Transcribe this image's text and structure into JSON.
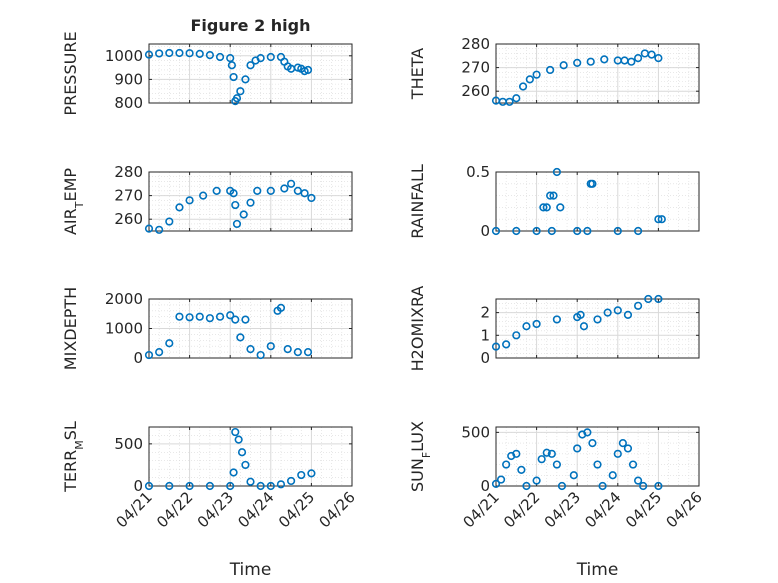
{
  "chart_data": [
    {
      "type": "scatter",
      "title": "Figure 2 high",
      "ylabel": "PRESSURE",
      "ylim": [
        800,
        1050
      ],
      "yticks": [
        800,
        900,
        1000
      ],
      "xlim": [
        "04/21",
        "04/26"
      ],
      "xticks": [
        "04/21",
        "04/22",
        "04/23",
        "04/24",
        "04/25",
        "04/26"
      ],
      "grid": true,
      "points": [
        [
          "04/21",
          1005
        ],
        [
          "04/21 06:00",
          1010
        ],
        [
          "04/21 12:00",
          1012
        ],
        [
          "04/21 18:00",
          1012
        ],
        [
          "04/22",
          1011
        ],
        [
          "04/22 06:00",
          1008
        ],
        [
          "04/22 12:00",
          1003
        ],
        [
          "04/22 18:00",
          995
        ],
        [
          "04/23",
          990
        ],
        [
          "04/23 01:00",
          960
        ],
        [
          "04/23 02:00",
          910
        ],
        [
          "04/23 03:00",
          808
        ],
        [
          "04/23 04:00",
          820
        ],
        [
          "04/23 06:00",
          850
        ],
        [
          "04/23 09:00",
          900
        ],
        [
          "04/23 12:00",
          960
        ],
        [
          "04/23 15:00",
          980
        ],
        [
          "04/23 18:00",
          990
        ],
        [
          "04/24",
          995
        ],
        [
          "04/24 06:00",
          995
        ],
        [
          "04/24 08:00",
          975
        ],
        [
          "04/24 10:00",
          955
        ],
        [
          "04/24 12:00",
          945
        ],
        [
          "04/24 16:00",
          950
        ],
        [
          "04/24 18:00",
          945
        ],
        [
          "04/24 20:00",
          935
        ],
        [
          "04/24 22:00",
          940
        ]
      ]
    },
    {
      "type": "scatter",
      "ylabel": "THETA",
      "ylim": [
        255,
        280
      ],
      "yticks": [
        260,
        270,
        280
      ],
      "xlim": [
        "04/21",
        "04/26"
      ],
      "xticks": [
        "04/21",
        "04/22",
        "04/23",
        "04/24",
        "04/25",
        "04/26"
      ],
      "grid": true,
      "points": [
        [
          "04/21",
          256
        ],
        [
          "04/21 04:00",
          255.5
        ],
        [
          "04/21 08:00",
          255.5
        ],
        [
          "04/21 12:00",
          257
        ],
        [
          "04/21 16:00",
          262
        ],
        [
          "04/21 20:00",
          265
        ],
        [
          "04/22",
          267
        ],
        [
          "04/22 08:00",
          269
        ],
        [
          "04/22 16:00",
          271
        ],
        [
          "04/23",
          272
        ],
        [
          "04/23 08:00",
          272.5
        ],
        [
          "04/23 16:00",
          273.5
        ],
        [
          "04/24",
          273
        ],
        [
          "04/24 04:00",
          273
        ],
        [
          "04/24 08:00",
          272.5
        ],
        [
          "04/24 12:00",
          274
        ],
        [
          "04/24 16:00",
          276
        ],
        [
          "04/24 20:00",
          275.5
        ],
        [
          "04/25",
          274
        ]
      ]
    },
    {
      "type": "scatter",
      "ylabel": "AIR_TEMP",
      "ylim": [
        255,
        280
      ],
      "yticks": [
        260,
        270,
        280
      ],
      "xlim": [
        "04/21",
        "04/26"
      ],
      "xticks": [
        "04/21",
        "04/22",
        "04/23",
        "04/24",
        "04/25",
        "04/26"
      ],
      "grid": true,
      "points": [
        [
          "04/21",
          256
        ],
        [
          "04/21 06:00",
          255.5
        ],
        [
          "04/21 12:00",
          259
        ],
        [
          "04/21 18:00",
          265
        ],
        [
          "04/22",
          268
        ],
        [
          "04/22 08:00",
          270
        ],
        [
          "04/22 16:00",
          272
        ],
        [
          "04/23",
          272
        ],
        [
          "04/23 02:00",
          271
        ],
        [
          "04/23 03:00",
          266
        ],
        [
          "04/23 04:00",
          258
        ],
        [
          "04/23 08:00",
          262
        ],
        [
          "04/23 12:00",
          267
        ],
        [
          "04/23 16:00",
          272
        ],
        [
          "04/24",
          272
        ],
        [
          "04/24 08:00",
          273
        ],
        [
          "04/24 12:00",
          275
        ],
        [
          "04/24 16:00",
          272
        ],
        [
          "04/24 20:00",
          271
        ],
        [
          "04/25",
          269
        ]
      ]
    },
    {
      "type": "scatter",
      "ylabel": "RAINFALL",
      "ylim": [
        0,
        0.5
      ],
      "yticks": [
        0,
        0.5
      ],
      "xlim": [
        "04/21",
        "04/26"
      ],
      "xticks": [
        "04/21",
        "04/22",
        "04/23",
        "04/24",
        "04/25",
        "04/26"
      ],
      "grid": true,
      "points": [
        [
          "04/21",
          0
        ],
        [
          "04/21 12:00",
          0
        ],
        [
          "04/22",
          0
        ],
        [
          "04/22 04:00",
          0.2
        ],
        [
          "04/22 06:00",
          0.2
        ],
        [
          "04/22 08:00",
          0.3
        ],
        [
          "04/22 09:00",
          0
        ],
        [
          "04/22 10:00",
          0.3
        ],
        [
          "04/22 12:00",
          0.5
        ],
        [
          "04/22 14:00",
          0.2
        ],
        [
          "04/23",
          0
        ],
        [
          "04/23 06:00",
          0
        ],
        [
          "04/23 08:00",
          0.4
        ],
        [
          "04/23 09:00",
          0.4
        ],
        [
          "04/24",
          0
        ],
        [
          "04/24 12:00",
          0
        ],
        [
          "04/25",
          0.1
        ],
        [
          "04/25 02:00",
          0.1
        ]
      ]
    },
    {
      "type": "scatter",
      "ylabel": "MIXDEPTH",
      "ylim": [
        0,
        2000
      ],
      "yticks": [
        0,
        1000,
        2000
      ],
      "xlim": [
        "04/21",
        "04/26"
      ],
      "xticks": [
        "04/21",
        "04/22",
        "04/23",
        "04/24",
        "04/25",
        "04/26"
      ],
      "grid": true,
      "points": [
        [
          "04/21",
          100
        ],
        [
          "04/21 06:00",
          200
        ],
        [
          "04/21 12:00",
          500
        ],
        [
          "04/21 18:00",
          1400
        ],
        [
          "04/22",
          1380
        ],
        [
          "04/22 06:00",
          1400
        ],
        [
          "04/22 12:00",
          1350
        ],
        [
          "04/22 18:00",
          1400
        ],
        [
          "04/23",
          1450
        ],
        [
          "04/23 03:00",
          1300
        ],
        [
          "04/23 06:00",
          700
        ],
        [
          "04/23 09:00",
          1300
        ],
        [
          "04/23 12:00",
          300
        ],
        [
          "04/23 18:00",
          100
        ],
        [
          "04/24",
          400
        ],
        [
          "04/24 04:00",
          1600
        ],
        [
          "04/24 06:00",
          1700
        ],
        [
          "04/24 10:00",
          300
        ],
        [
          "04/24 16:00",
          200
        ],
        [
          "04/24 22:00",
          200
        ]
      ]
    },
    {
      "type": "scatter",
      "ylabel": "H2OMIXRA",
      "ylim": [
        0,
        2.6
      ],
      "yticks": [
        0,
        1,
        2
      ],
      "xlim": [
        "04/21",
        "04/26"
      ],
      "xticks": [
        "04/21",
        "04/22",
        "04/23",
        "04/24",
        "04/25",
        "04/26"
      ],
      "grid": true,
      "points": [
        [
          "04/21",
          0.5
        ],
        [
          "04/21 06:00",
          0.6
        ],
        [
          "04/21 12:00",
          1.0
        ],
        [
          "04/21 18:00",
          1.4
        ],
        [
          "04/22",
          1.5
        ],
        [
          "04/22 12:00",
          1.7
        ],
        [
          "04/23",
          1.8
        ],
        [
          "04/23 02:00",
          1.9
        ],
        [
          "04/23 04:00",
          1.4
        ],
        [
          "04/23 12:00",
          1.7
        ],
        [
          "04/23 18:00",
          2.0
        ],
        [
          "04/24",
          2.1
        ],
        [
          "04/24 06:00",
          1.9
        ],
        [
          "04/24 12:00",
          2.3
        ],
        [
          "04/24 18:00",
          2.6
        ],
        [
          "04/25",
          2.6
        ]
      ]
    },
    {
      "type": "scatter",
      "ylabel": "TERR_MSL",
      "ylim": [
        0,
        700
      ],
      "yticks": [
        0,
        500
      ],
      "xlim": [
        "04/21",
        "04/26"
      ],
      "xticks": [
        "04/21",
        "04/22",
        "04/23",
        "04/24",
        "04/25",
        "04/26"
      ],
      "grid": true,
      "points": [
        [
          "04/21",
          0
        ],
        [
          "04/21 12:00",
          0
        ],
        [
          "04/22",
          0
        ],
        [
          "04/22 12:00",
          0
        ],
        [
          "04/23",
          0
        ],
        [
          "04/23 02:00",
          160
        ],
        [
          "04/23 03:00",
          640
        ],
        [
          "04/23 05:00",
          550
        ],
        [
          "04/23 07:00",
          400
        ],
        [
          "04/23 09:00",
          250
        ],
        [
          "04/23 12:00",
          50
        ],
        [
          "04/23 18:00",
          0
        ],
        [
          "04/24",
          0
        ],
        [
          "04/24 06:00",
          20
        ],
        [
          "04/24 12:00",
          60
        ],
        [
          "04/24 18:00",
          130
        ],
        [
          "04/25",
          150
        ]
      ]
    },
    {
      "type": "scatter",
      "ylabel": "SUN_FLUX",
      "ylim": [
        0,
        550
      ],
      "yticks": [
        0,
        500
      ],
      "xlim": [
        "04/21",
        "04/26"
      ],
      "xticks": [
        "04/21",
        "04/22",
        "04/23",
        "04/24",
        "04/25",
        "04/26"
      ],
      "grid": true,
      "points": [
        [
          "04/21",
          20
        ],
        [
          "04/21 03:00",
          60
        ],
        [
          "04/21 06:00",
          200
        ],
        [
          "04/21 09:00",
          280
        ],
        [
          "04/21 12:00",
          300
        ],
        [
          "04/21 15:00",
          150
        ],
        [
          "04/21 18:00",
          0
        ],
        [
          "04/22",
          50
        ],
        [
          "04/22 03:00",
          250
        ],
        [
          "04/22 06:00",
          310
        ],
        [
          "04/22 09:00",
          300
        ],
        [
          "04/22 12:00",
          200
        ],
        [
          "04/22 15:00",
          0
        ],
        [
          "04/22 22:00",
          100
        ],
        [
          "04/23",
          350
        ],
        [
          "04/23 03:00",
          480
        ],
        [
          "04/23 06:00",
          500
        ],
        [
          "04/23 09:00",
          400
        ],
        [
          "04/23 12:00",
          200
        ],
        [
          "04/23 15:00",
          0
        ],
        [
          "04/23 21:00",
          100
        ],
        [
          "04/24",
          300
        ],
        [
          "04/24 03:00",
          400
        ],
        [
          "04/24 06:00",
          350
        ],
        [
          "04/24 09:00",
          200
        ],
        [
          "04/24 12:00",
          50
        ],
        [
          "04/24 15:00",
          0
        ],
        [
          "04/25",
          0
        ]
      ]
    }
  ],
  "xlabel": "Time",
  "colors": {
    "marker": "#0072BD",
    "grid": "#d9d9d9",
    "axis": "#262626"
  }
}
